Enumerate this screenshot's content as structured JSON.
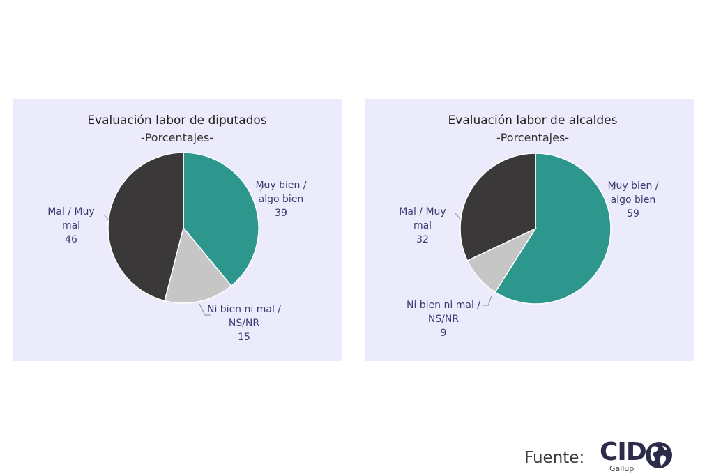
{
  "chart_data": [
    {
      "type": "pie",
      "title": "Evaluación labor de diputados",
      "subtitle": "-Porcentajes-",
      "slices": [
        {
          "label_lines": [
            "Muy bien /",
            "algo bien"
          ],
          "value": 39,
          "color": "#2e978d"
        },
        {
          "label_lines": [
            "Ni bien ni mal /",
            "NS/NR"
          ],
          "value": 15,
          "color": "#c6c6c6"
        },
        {
          "label_lines": [
            "Mal / Muy",
            "mal"
          ],
          "value": 46,
          "color": "#3b3839"
        }
      ]
    },
    {
      "type": "pie",
      "title": "Evaluación labor de alcaldes",
      "subtitle": "-Porcentajes-",
      "slices": [
        {
          "label_lines": [
            "Muy bien /",
            "algo bien"
          ],
          "value": 59,
          "color": "#2e978d"
        },
        {
          "label_lines": [
            "Ni bien ni mal /",
            "NS/NR"
          ],
          "value": 9,
          "color": "#c6c6c6"
        },
        {
          "label_lines": [
            "Mal / Muy",
            "mal"
          ],
          "value": 32,
          "color": "#3b3839"
        }
      ]
    }
  ],
  "footer": {
    "source_label": "Fuente:",
    "logo_text": "CID",
    "logo_subtext": "Gallup"
  }
}
